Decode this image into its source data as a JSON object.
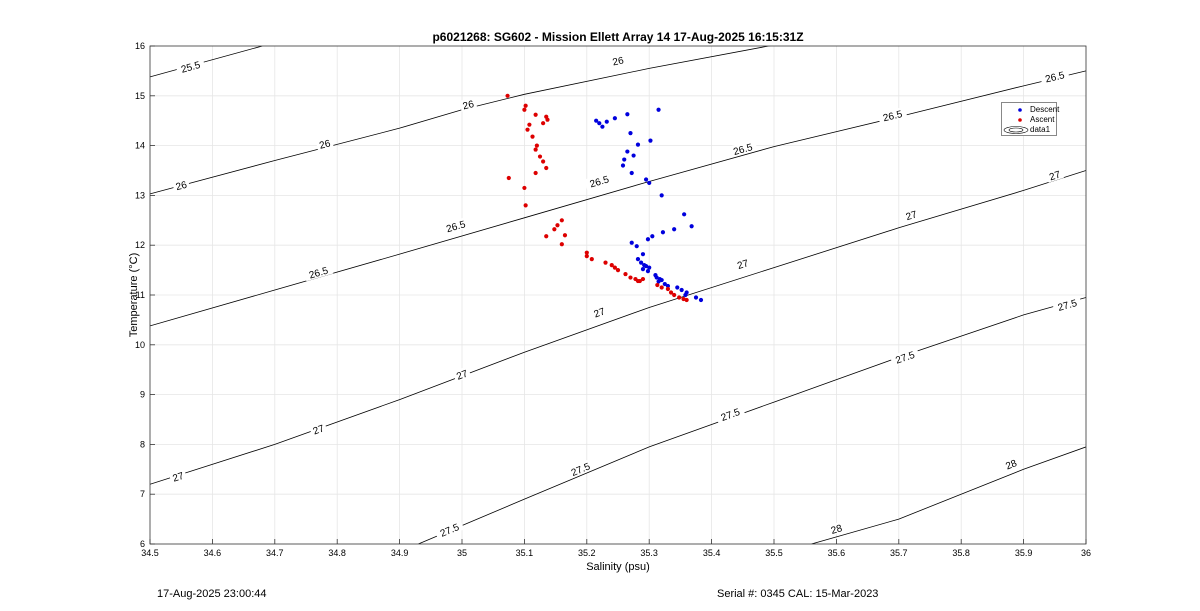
{
  "title": "p6021268: SG602 - Mission Ellett Array 14 17-Aug-2025 16:15:31Z",
  "footer_left": "17-Aug-2025 23:00:44",
  "footer_right": "Serial #: 0345  CAL: 15-Mar-2023",
  "colors": {
    "descent": "#0000dd",
    "ascent": "#dd0000",
    "contour": "#000000",
    "grid": "#e6e6e6"
  },
  "chart_data": {
    "type": "scatter",
    "title": "p6021268: SG602 - Mission Ellett Array 14 17-Aug-2025 16:15:31Z",
    "xlabel": "Salinity (psu)",
    "ylabel": "Temperature (°C)",
    "xlim": [
      34.5,
      36
    ],
    "ylim": [
      6,
      16
    ],
    "xticks": [
      "34.5",
      "34.6",
      "34.7",
      "34.8",
      "34.9",
      "35",
      "35.1",
      "35.2",
      "35.3",
      "35.4",
      "35.5",
      "35.6",
      "35.7",
      "35.8",
      "35.9",
      "36"
    ],
    "yticks": [
      "6",
      "7",
      "8",
      "9",
      "10",
      "11",
      "12",
      "13",
      "14",
      "15",
      "16"
    ],
    "grid": true,
    "legend_position": "top-right",
    "legend": [
      "Descent",
      "Ascent",
      "data1"
    ],
    "contours": [
      {
        "level": "25.5",
        "points": [
          [
            34.5,
            15.38
          ],
          [
            34.68,
            16
          ]
        ],
        "labels": [
          [
            34.565,
            15.58
          ]
        ]
      },
      {
        "level": "26",
        "points": [
          [
            34.5,
            13.03
          ],
          [
            34.7,
            13.7
          ],
          [
            34.9,
            14.35
          ],
          [
            35.0,
            14.72
          ],
          [
            35.1,
            15.03
          ],
          [
            35.3,
            15.55
          ],
          [
            35.5,
            16.02
          ]
        ],
        "labels": [
          [
            34.55,
            13.2
          ],
          [
            34.78,
            14.03
          ],
          [
            35.01,
            14.82
          ],
          [
            35.25,
            15.7
          ]
        ]
      },
      {
        "level": "26.5",
        "points": [
          [
            34.5,
            10.38
          ],
          [
            34.7,
            11.1
          ],
          [
            34.9,
            11.82
          ],
          [
            35.1,
            12.55
          ],
          [
            35.3,
            13.28
          ],
          [
            35.5,
            13.98
          ],
          [
            35.7,
            14.58
          ],
          [
            35.9,
            15.2
          ],
          [
            36.0,
            15.5
          ]
        ],
        "labels": [
          [
            34.77,
            11.45
          ],
          [
            34.99,
            12.38
          ],
          [
            35.22,
            13.28
          ],
          [
            35.45,
            13.93
          ],
          [
            35.69,
            14.6
          ],
          [
            35.95,
            15.38
          ]
        ]
      },
      {
        "level": "27",
        "points": [
          [
            34.5,
            7.2
          ],
          [
            34.7,
            8.0
          ],
          [
            34.9,
            8.9
          ],
          [
            35.1,
            9.85
          ],
          [
            35.3,
            10.75
          ],
          [
            35.5,
            11.55
          ],
          [
            35.7,
            12.35
          ],
          [
            35.9,
            13.1
          ],
          [
            36.0,
            13.5
          ]
        ],
        "labels": [
          [
            34.545,
            7.35
          ],
          [
            34.77,
            8.3
          ],
          [
            35.0,
            9.4
          ],
          [
            35.22,
            10.65
          ],
          [
            35.45,
            11.62
          ],
          [
            35.72,
            12.6
          ],
          [
            35.95,
            13.4
          ]
        ]
      },
      {
        "level": "27.5",
        "points": [
          [
            34.93,
            6.0
          ],
          [
            35.1,
            6.9
          ],
          [
            35.3,
            7.95
          ],
          [
            35.5,
            8.85
          ],
          [
            35.7,
            9.75
          ],
          [
            35.9,
            10.6
          ],
          [
            36.0,
            10.95
          ]
        ],
        "labels": [
          [
            34.98,
            6.28
          ],
          [
            35.19,
            7.5
          ],
          [
            35.43,
            8.6
          ],
          [
            35.71,
            9.75
          ],
          [
            35.97,
            10.8
          ]
        ]
      },
      {
        "level": "28",
        "points": [
          [
            35.56,
            6.0
          ],
          [
            35.7,
            6.5
          ],
          [
            35.9,
            7.5
          ],
          [
            36.0,
            7.95
          ]
        ],
        "labels": [
          [
            35.6,
            6.3
          ],
          [
            35.88,
            7.6
          ]
        ]
      }
    ],
    "series": [
      {
        "name": "Descent",
        "color": "#0000dd",
        "points": [
          [
            35.315,
            14.72
          ],
          [
            35.265,
            14.63
          ],
          [
            35.245,
            14.55
          ],
          [
            35.232,
            14.48
          ],
          [
            35.22,
            14.45
          ],
          [
            35.215,
            14.5
          ],
          [
            35.225,
            14.38
          ],
          [
            35.27,
            14.25
          ],
          [
            35.302,
            14.1
          ],
          [
            35.282,
            14.02
          ],
          [
            35.265,
            13.88
          ],
          [
            35.275,
            13.8
          ],
          [
            35.26,
            13.72
          ],
          [
            35.258,
            13.6
          ],
          [
            35.272,
            13.45
          ],
          [
            35.295,
            13.32
          ],
          [
            35.3,
            13.25
          ],
          [
            35.32,
            13.0
          ],
          [
            35.356,
            12.62
          ],
          [
            35.368,
            12.38
          ],
          [
            35.34,
            12.32
          ],
          [
            35.322,
            12.26
          ],
          [
            35.305,
            12.18
          ],
          [
            35.298,
            12.12
          ],
          [
            35.272,
            12.05
          ],
          [
            35.28,
            11.98
          ],
          [
            35.29,
            11.82
          ],
          [
            35.282,
            11.72
          ],
          [
            35.287,
            11.65
          ],
          [
            35.292,
            11.6
          ],
          [
            35.295,
            11.58
          ],
          [
            35.3,
            11.55
          ],
          [
            35.29,
            11.52
          ],
          [
            35.298,
            11.48
          ],
          [
            35.31,
            11.4
          ],
          [
            35.312,
            11.35
          ],
          [
            35.317,
            11.32
          ],
          [
            35.32,
            11.3
          ],
          [
            35.315,
            11.27
          ],
          [
            35.325,
            11.22
          ],
          [
            35.33,
            11.18
          ],
          [
            35.345,
            11.15
          ],
          [
            35.352,
            11.1
          ],
          [
            35.36,
            11.05
          ],
          [
            35.358,
            11.0
          ],
          [
            35.375,
            10.95
          ],
          [
            35.383,
            10.9
          ]
        ]
      },
      {
        "name": "Ascent",
        "color": "#dd0000",
        "points": [
          [
            35.073,
            15.0
          ],
          [
            35.102,
            14.8
          ],
          [
            35.1,
            14.72
          ],
          [
            35.118,
            14.62
          ],
          [
            35.135,
            14.58
          ],
          [
            35.137,
            14.52
          ],
          [
            35.13,
            14.45
          ],
          [
            35.108,
            14.42
          ],
          [
            35.105,
            14.32
          ],
          [
            35.113,
            14.18
          ],
          [
            35.12,
            14.0
          ],
          [
            35.118,
            13.92
          ],
          [
            35.125,
            13.78
          ],
          [
            35.13,
            13.68
          ],
          [
            35.135,
            13.55
          ],
          [
            35.118,
            13.45
          ],
          [
            35.075,
            13.35
          ],
          [
            35.1,
            13.15
          ],
          [
            35.102,
            12.8
          ],
          [
            35.16,
            12.5
          ],
          [
            35.153,
            12.4
          ],
          [
            35.148,
            12.32
          ],
          [
            35.165,
            12.2
          ],
          [
            35.135,
            12.18
          ],
          [
            35.16,
            12.02
          ],
          [
            35.2,
            11.85
          ],
          [
            35.2,
            11.78
          ],
          [
            35.208,
            11.72
          ],
          [
            35.23,
            11.65
          ],
          [
            35.24,
            11.6
          ],
          [
            35.245,
            11.55
          ],
          [
            35.25,
            11.5
          ],
          [
            35.262,
            11.42
          ],
          [
            35.27,
            11.35
          ],
          [
            35.278,
            11.32
          ],
          [
            35.282,
            11.28
          ],
          [
            35.285,
            11.28
          ],
          [
            35.29,
            11.32
          ],
          [
            35.313,
            11.2
          ],
          [
            35.32,
            11.15
          ],
          [
            35.33,
            11.12
          ],
          [
            35.335,
            11.05
          ],
          [
            35.34,
            11.0
          ],
          [
            35.348,
            10.95
          ],
          [
            35.355,
            10.92
          ],
          [
            35.36,
            10.9
          ]
        ]
      }
    ]
  }
}
